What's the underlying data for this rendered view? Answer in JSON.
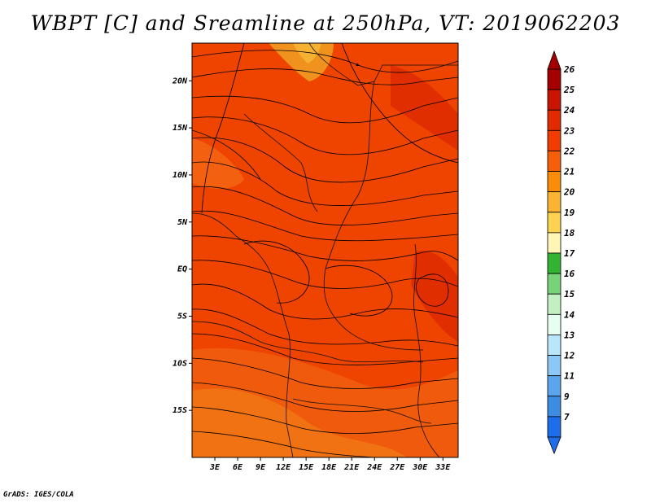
{
  "title": "WBPT [C] and Sreamline at 250hPa, VT: 2019062203",
  "footer": "GrADS: IGES/COLA",
  "map": {
    "lon_range": [
      0,
      35
    ],
    "lat_range": [
      -20,
      24
    ],
    "lat_ticks": [
      {
        "value": 20,
        "label": "20N"
      },
      {
        "value": 15,
        "label": "15N"
      },
      {
        "value": 10,
        "label": "10N"
      },
      {
        "value": 5,
        "label": "5N"
      },
      {
        "value": 0,
        "label": "EQ"
      },
      {
        "value": -5,
        "label": "5S"
      },
      {
        "value": -10,
        "label": "10S"
      },
      {
        "value": -15,
        "label": "15S"
      }
    ],
    "lon_ticks": [
      {
        "value": 3,
        "label": "3E"
      },
      {
        "value": 6,
        "label": "6E"
      },
      {
        "value": 9,
        "label": "9E"
      },
      {
        "value": 12,
        "label": "12E"
      },
      {
        "value": 15,
        "label": "15E"
      },
      {
        "value": 18,
        "label": "18E"
      },
      {
        "value": 21,
        "label": "21E"
      },
      {
        "value": 24,
        "label": "24E"
      },
      {
        "value": 27,
        "label": "27E"
      },
      {
        "value": 30,
        "label": "30E"
      },
      {
        "value": 33,
        "label": "33E"
      }
    ]
  },
  "colorbar": {
    "levels": [
      {
        "label": "26",
        "color": "#a50000"
      },
      {
        "label": "25",
        "color": "#c81400"
      },
      {
        "label": "24",
        "color": "#e12a00"
      },
      {
        "label": "23",
        "color": "#f03c00"
      },
      {
        "label": "22",
        "color": "#f55f0a"
      },
      {
        "label": "21",
        "color": "#fa8c0a"
      },
      {
        "label": "20",
        "color": "#fbb432"
      },
      {
        "label": "19",
        "color": "#fcd250"
      },
      {
        "label": "18",
        "color": "#fff5b4"
      },
      {
        "label": "17",
        "color": "#32b432"
      },
      {
        "label": "16",
        "color": "#78d278"
      },
      {
        "label": "15",
        "color": "#c3f0c3"
      },
      {
        "label": "14",
        "color": "#e6fff0"
      },
      {
        "label": "13",
        "color": "#b9e6fa"
      },
      {
        "label": "12",
        "color": "#8cc8f5"
      },
      {
        "label": "11",
        "color": "#5aa5eb"
      },
      {
        "label": "9",
        "color": "#3c8ce1"
      },
      {
        "label": "7",
        "color": "#1e6eeb"
      }
    ],
    "bottom_color": "#1e6eeb",
    "top_color": "#a50000"
  }
}
